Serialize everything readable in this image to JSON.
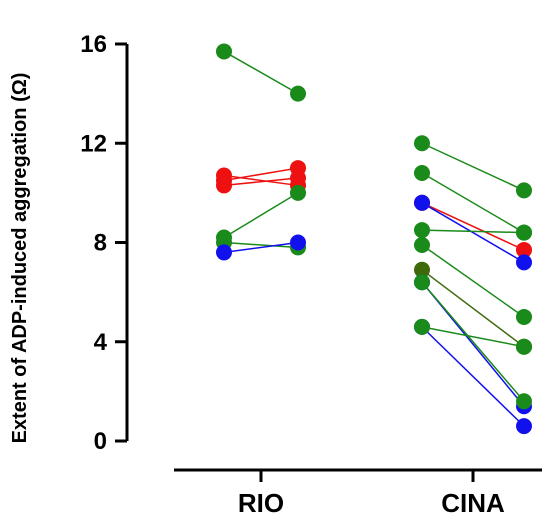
{
  "chart_data": {
    "type": "scatter",
    "subtype": "paired-before-after",
    "title": "",
    "xlabel": "",
    "ylabel": "Extent of ADP-induced aggregation (Ω)",
    "categories": [
      "RIO",
      "CINA"
    ],
    "ylim": [
      0,
      16
    ],
    "yticks": [
      "0",
      "4",
      "8",
      "12",
      "16"
    ],
    "grid": false,
    "legend": "none",
    "colors": {
      "green": "#1a8a1a",
      "red": "#ee1111",
      "blue": "#1111ee",
      "olive": "#3f6a0c"
    },
    "series": [
      {
        "group": "RIO",
        "color": "green",
        "values": [
          15.7,
          14.0
        ]
      },
      {
        "group": "RIO",
        "color": "red",
        "values": [
          10.7,
          10.3
        ]
      },
      {
        "group": "RIO",
        "color": "red",
        "values": [
          10.5,
          11.0
        ]
      },
      {
        "group": "RIO",
        "color": "red",
        "values": [
          10.3,
          10.6
        ]
      },
      {
        "group": "RIO",
        "color": "green",
        "values": [
          8.2,
          10.0
        ]
      },
      {
        "group": "RIO",
        "color": "green",
        "values": [
          8.0,
          7.8
        ]
      },
      {
        "group": "RIO",
        "color": "blue",
        "values": [
          7.6,
          8.0
        ]
      },
      {
        "group": "CINA",
        "color": "green",
        "values": [
          12.0,
          10.1
        ]
      },
      {
        "group": "CINA",
        "color": "green",
        "values": [
          10.8,
          8.4
        ]
      },
      {
        "group": "CINA",
        "color": "red",
        "values": [
          9.6,
          7.7
        ]
      },
      {
        "group": "CINA",
        "color": "blue",
        "values": [
          9.6,
          7.2
        ]
      },
      {
        "group": "CINA",
        "color": "green",
        "values": [
          8.5,
          8.4
        ]
      },
      {
        "group": "CINA",
        "color": "green",
        "values": [
          7.9,
          5.0
        ]
      },
      {
        "group": "CINA",
        "color": "olive",
        "values": [
          6.9,
          3.8
        ]
      },
      {
        "group": "CINA",
        "color": "blue",
        "values": [
          6.4,
          1.4
        ]
      },
      {
        "group": "CINA",
        "color": "green",
        "values": [
          6.4,
          1.6
        ]
      },
      {
        "group": "CINA",
        "color": "blue",
        "values": [
          4.6,
          0.6
        ]
      },
      {
        "group": "CINA",
        "color": "green",
        "values": [
          4.6,
          3.8
        ]
      }
    ]
  }
}
